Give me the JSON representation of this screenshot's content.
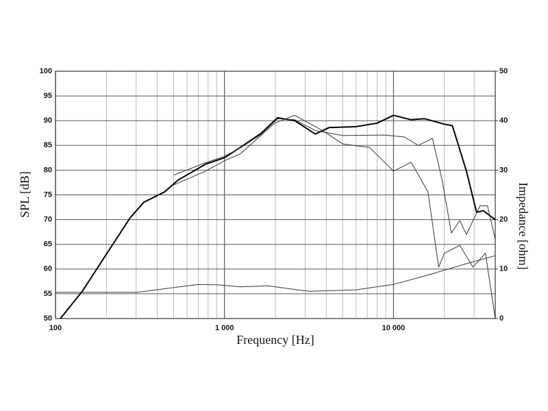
{
  "chart_data": {
    "type": "line",
    "x_label": "Frequency [Hz]",
    "y_label": "SPL [dB]",
    "y2_label": "Impedance [ohm]",
    "log_x": true,
    "grid": true,
    "xlim": [
      100,
      40000
    ],
    "xticks": [
      {
        "value": 100,
        "label": "100"
      },
      {
        "value": 1000,
        "label": "1 000"
      },
      {
        "value": 10000,
        "label": "10 000"
      }
    ],
    "xminor": [
      200,
      300,
      400,
      500,
      600,
      700,
      800,
      900,
      2000,
      3000,
      4000,
      5000,
      6000,
      7000,
      8000,
      9000,
      20000,
      30000
    ],
    "ylim": [
      50,
      100
    ],
    "yticks": [
      50,
      55,
      60,
      65,
      70,
      75,
      80,
      85,
      90,
      95,
      100
    ],
    "y2lim": [
      0,
      50
    ],
    "y2ticks": [
      0,
      10,
      20,
      30,
      40,
      50
    ],
    "series": [
      {
        "color": "#000000",
        "line_width": 2,
        "x": [
          107,
          144,
          200,
          277,
          333,
          442,
          532,
          772,
          1000,
          1240,
          1640,
          2060,
          2600,
          3450,
          4150,
          6000,
          8000,
          10000,
          12700,
          15300,
          20000,
          22300,
          27000,
          31000,
          34000,
          40000
        ],
        "values": [
          50,
          55.5,
          63,
          70.4,
          73.5,
          75.6,
          78,
          81.2,
          82.5,
          84.6,
          87.4,
          90.6,
          90,
          87.3,
          88.6,
          88.8,
          89.5,
          91.1,
          90.2,
          90.4,
          89.3,
          89,
          79.8,
          71.5,
          71.8,
          70
        ]
      },
      {
        "color": "#333333",
        "line_width": 1,
        "x": [
          500,
          772,
          1000,
          1240,
          1640,
          2060,
          2600,
          3450,
          5000,
          8800,
          11600,
          14000,
          17000,
          19300,
          22000,
          24700,
          27000,
          32500,
          36000,
          40000
        ],
        "values": [
          79,
          81.5,
          82.8,
          84.5,
          87.2,
          90.4,
          90.2,
          88,
          87,
          87.1,
          86.7,
          85,
          86.4,
          78.4,
          67.3,
          69.8,
          67,
          72.8,
          72.8,
          66
        ]
      },
      {
        "color": "#333333",
        "line_width": 1,
        "x": [
          500,
          772,
          1000,
          1240,
          1980,
          2600,
          3800,
          5000,
          7200,
          10000,
          12700,
          16000,
          18500,
          20000,
          24700,
          29500,
          35000,
          40000
        ],
        "values": [
          77,
          79.8,
          81.9,
          83.3,
          89.5,
          91.1,
          88,
          85.3,
          84.6,
          79.8,
          81.6,
          75.6,
          60.4,
          63.2,
          64.8,
          60.4,
          63.2,
          50
        ]
      },
      {
        "color": "#333333",
        "line_width": 1,
        "axis": "y2",
        "x": [
          100,
          304,
          700,
          930,
          1240,
          1800,
          3150,
          6000,
          10000,
          15300,
          27000,
          40000
        ],
        "values": [
          5.3,
          5.3,
          6.9,
          6.8,
          6.4,
          6.6,
          5.5,
          5.8,
          6.9,
          8.6,
          11.1,
          12.7
        ]
      }
    ]
  }
}
